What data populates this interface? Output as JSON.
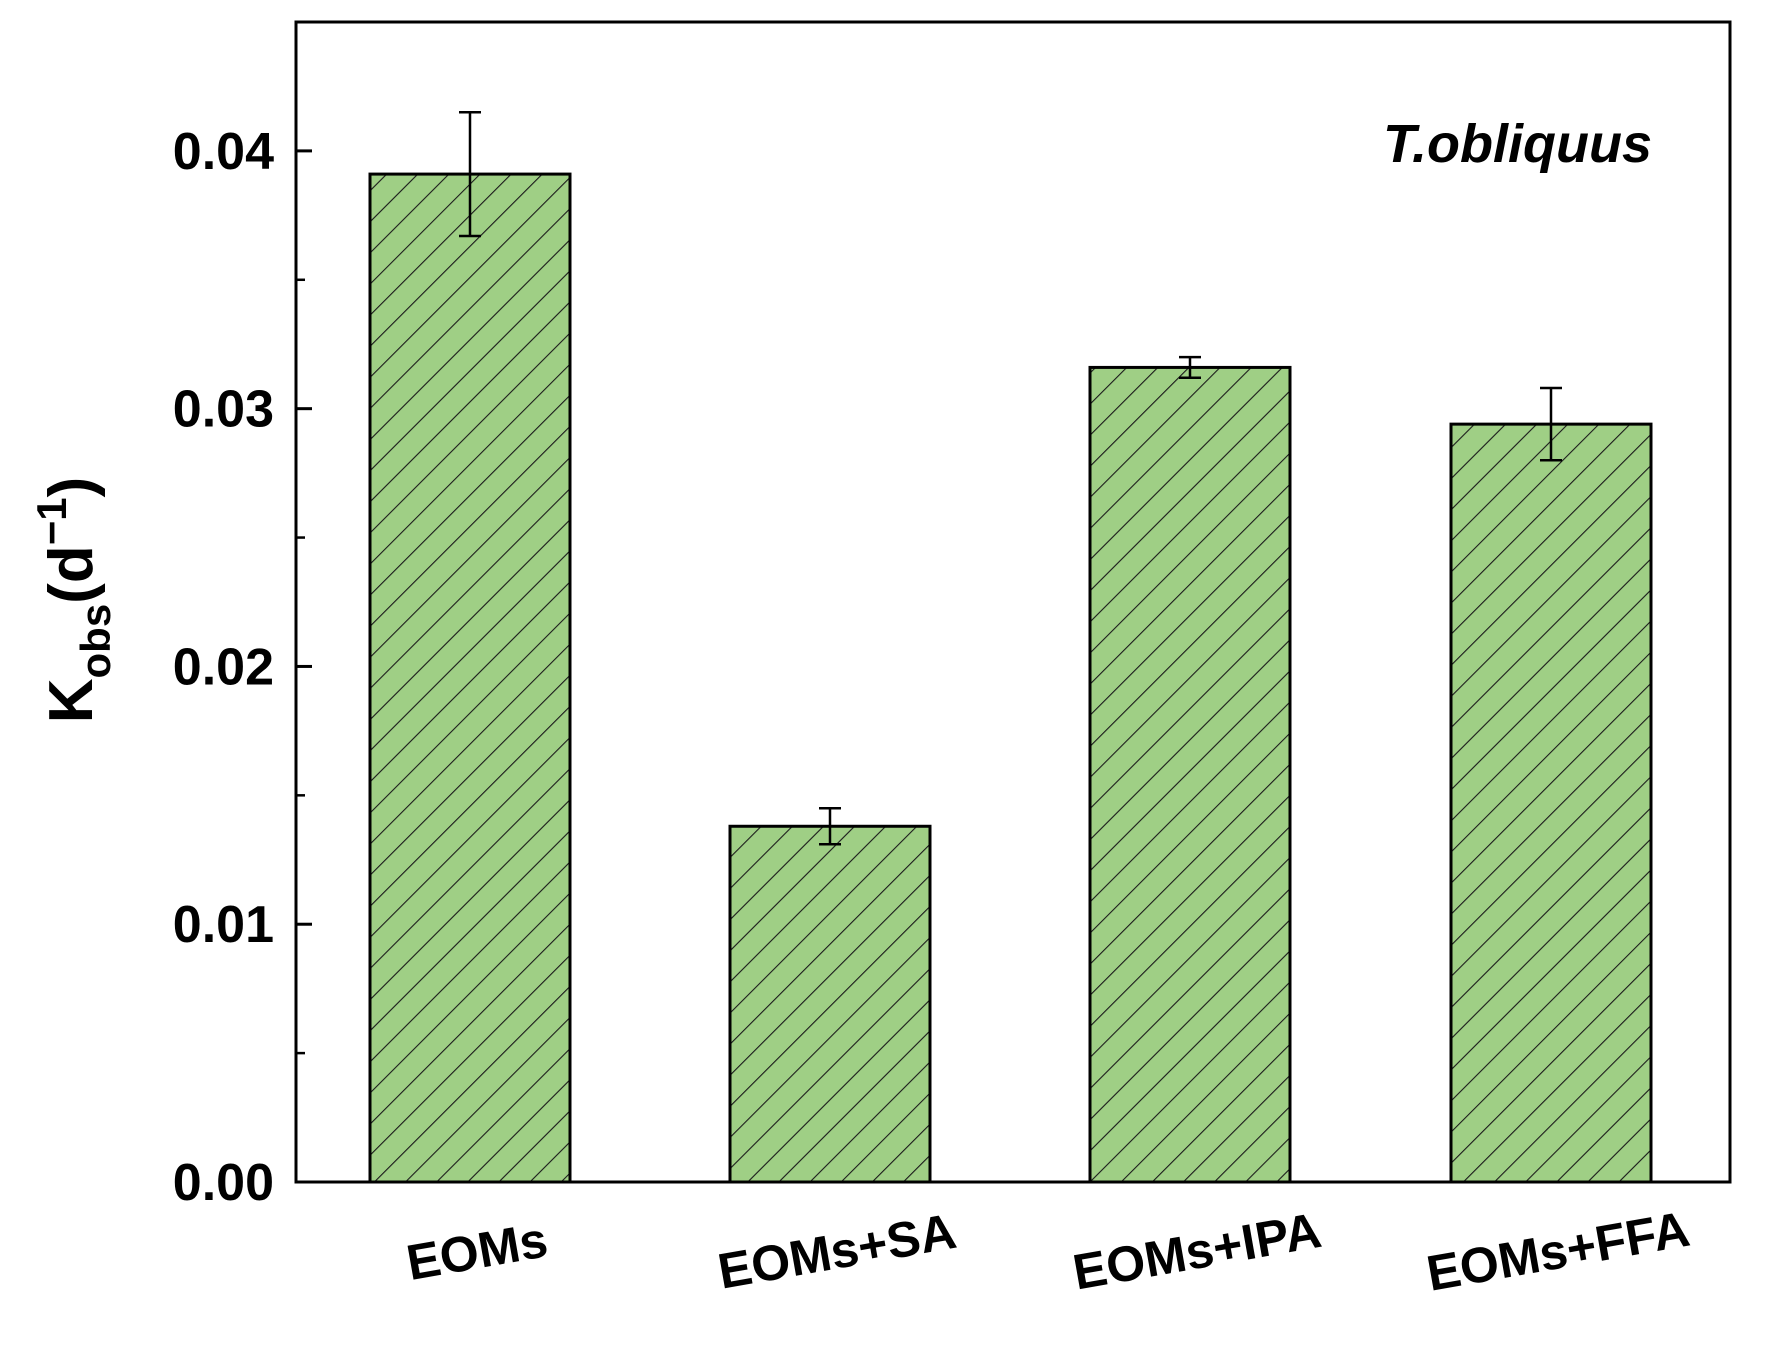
{
  "chart_data": {
    "type": "bar",
    "title": "",
    "xlabel": "",
    "ylabel": {
      "main": "K",
      "subscript": "obs",
      "unit_open": "(d",
      "unit_exp": "−1",
      "unit_close": ")"
    },
    "annotation": "T.obliquus",
    "ylim": [
      0,
      0.045
    ],
    "yticks": [
      {
        "value": 0,
        "label": "0.00"
      },
      {
        "value": 0.01,
        "label": "0.01"
      },
      {
        "value": 0.02,
        "label": "0.02"
      },
      {
        "value": 0.03,
        "label": "0.03"
      },
      {
        "value": 0.04,
        "label": "0.04"
      }
    ],
    "minor_yticks": [
      0.005,
      0.015,
      0.025,
      0.035
    ],
    "categories": [
      "EOMs",
      "EOMs+SA",
      "EOMs+IPA",
      "EOMs+FFA"
    ],
    "values": [
      0.0391,
      0.0138,
      0.0316,
      0.0294
    ],
    "errors": [
      0.0024,
      0.0007,
      0.0004,
      0.0014
    ],
    "bar_color": "#9fcf85",
    "hatch": "diagonal",
    "grid": false,
    "legend": "none"
  }
}
